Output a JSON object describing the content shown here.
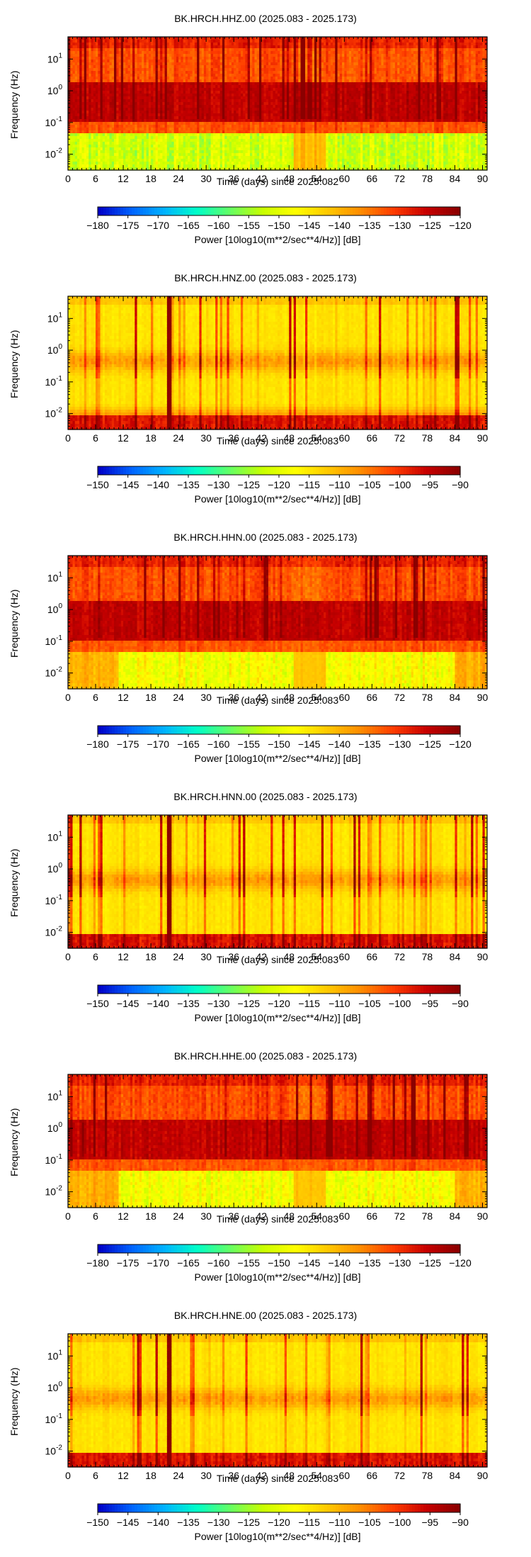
{
  "colors": {
    "colormap": [
      "#0000c8",
      "#0064ff",
      "#00b4ff",
      "#00ffc8",
      "#64ff64",
      "#c8ff00",
      "#ffff00",
      "#ffc800",
      "#ff8c00",
      "#ff3c00",
      "#c80000",
      "#8b0000"
    ]
  },
  "chart_data": [
    {
      "type": "heatmap",
      "title": "BK.HRCH.HHZ.00 (2025.083 - 2025.173)",
      "xlabel": "Time (days) since 2025.082",
      "ylabel": "Frequency (Hz)",
      "xlim": [
        0,
        91
      ],
      "x_ticks": [
        "0",
        "6",
        "12",
        "18",
        "24",
        "30",
        "36",
        "42",
        "48",
        "54",
        "60",
        "66",
        "72",
        "78",
        "84",
        "90"
      ],
      "ylim_log10": [
        -2.5,
        1.7
      ],
      "y_ticks": [
        {
          "base": "10",
          "exp": "-2"
        },
        {
          "base": "10",
          "exp": "-1"
        },
        {
          "base": "10",
          "exp": "0"
        },
        {
          "base": "10",
          "exp": "1"
        }
      ],
      "colorbar": {
        "label": "Power [10log10(m**2/sec**4/Hz)] [dB]",
        "range": [
          -180,
          -120
        ],
        "ticks": [
          "−180",
          "−175",
          "−170",
          "−165",
          "−160",
          "−155",
          "−150",
          "−145",
          "−140",
          "−135",
          "−130",
          "−125",
          "−120"
        ]
      },
      "pattern": "broadband-high"
    },
    {
      "type": "heatmap",
      "title": "BK.HRCH.HNZ.00 (2025.083 - 2025.173)",
      "xlabel": "Time (days) since 2025.083",
      "ylabel": "Frequency (Hz)",
      "xlim": [
        0,
        91
      ],
      "x_ticks": [
        "0",
        "6",
        "12",
        "18",
        "24",
        "30",
        "36",
        "42",
        "48",
        "54",
        "60",
        "66",
        "72",
        "78",
        "84",
        "90"
      ],
      "ylim_log10": [
        -2.5,
        1.7
      ],
      "y_ticks": [
        {
          "base": "10",
          "exp": "-2"
        },
        {
          "base": "10",
          "exp": "-1"
        },
        {
          "base": "10",
          "exp": "0"
        },
        {
          "base": "10",
          "exp": "1"
        }
      ],
      "colorbar": {
        "label": "Power [10log10(m**2/sec**4/Hz)] [dB]",
        "range": [
          -150,
          -90
        ],
        "ticks": [
          "−150",
          "−145",
          "−140",
          "−135",
          "−130",
          "−125",
          "−120",
          "−115",
          "−110",
          "−105",
          "−100",
          "−95",
          "−90"
        ]
      },
      "pattern": "strong-motion"
    },
    {
      "type": "heatmap",
      "title": "BK.HRCH.HHN.00 (2025.083 - 2025.173)",
      "xlabel": "Time (days) since 2025.083",
      "ylabel": "Frequency (Hz)",
      "xlim": [
        0,
        91
      ],
      "x_ticks": [
        "0",
        "6",
        "12",
        "18",
        "24",
        "30",
        "36",
        "42",
        "48",
        "54",
        "60",
        "66",
        "72",
        "78",
        "84",
        "90"
      ],
      "ylim_log10": [
        -2.5,
        1.7
      ],
      "y_ticks": [
        {
          "base": "10",
          "exp": "-2"
        },
        {
          "base": "10",
          "exp": "-1"
        },
        {
          "base": "10",
          "exp": "0"
        },
        {
          "base": "10",
          "exp": "1"
        }
      ],
      "colorbar": {
        "label": "Power [10log10(m**2/sec**4/Hz)] [dB]",
        "range": [
          -180,
          -120
        ],
        "ticks": [
          "−180",
          "−175",
          "−170",
          "−165",
          "−160",
          "−155",
          "−150",
          "−145",
          "−140",
          "−135",
          "−130",
          "−125",
          "−120"
        ]
      },
      "pattern": "broadband-horizontal"
    },
    {
      "type": "heatmap",
      "title": "BK.HRCH.HNN.00 (2025.083 - 2025.173)",
      "xlabel": "Time (days) since 2025.083",
      "ylabel": "Frequency (Hz)",
      "xlim": [
        0,
        91
      ],
      "x_ticks": [
        "0",
        "6",
        "12",
        "18",
        "24",
        "30",
        "36",
        "42",
        "48",
        "54",
        "60",
        "66",
        "72",
        "78",
        "84",
        "90"
      ],
      "ylim_log10": [
        -2.5,
        1.7
      ],
      "y_ticks": [
        {
          "base": "10",
          "exp": "-2"
        },
        {
          "base": "10",
          "exp": "-1"
        },
        {
          "base": "10",
          "exp": "0"
        },
        {
          "base": "10",
          "exp": "1"
        }
      ],
      "colorbar": {
        "label": "Power [10log10(m**2/sec**4/Hz)] [dB]",
        "range": [
          -150,
          -90
        ],
        "ticks": [
          "−150",
          "−145",
          "−140",
          "−135",
          "−130",
          "−125",
          "−120",
          "−115",
          "−110",
          "−105",
          "−100",
          "−95",
          "−90"
        ]
      },
      "pattern": "strong-motion-horizontal"
    },
    {
      "type": "heatmap",
      "title": "BK.HRCH.HHE.00 (2025.083 - 2025.173)",
      "xlabel": "Time (days) since 2025.083",
      "ylabel": "Frequency (Hz)",
      "xlim": [
        0,
        91
      ],
      "x_ticks": [
        "0",
        "6",
        "12",
        "18",
        "24",
        "30",
        "36",
        "42",
        "48",
        "54",
        "60",
        "66",
        "72",
        "78",
        "84",
        "90"
      ],
      "ylim_log10": [
        -2.5,
        1.7
      ],
      "y_ticks": [
        {
          "base": "10",
          "exp": "-2"
        },
        {
          "base": "10",
          "exp": "-1"
        },
        {
          "base": "10",
          "exp": "0"
        },
        {
          "base": "10",
          "exp": "1"
        }
      ],
      "colorbar": {
        "label": "Power [10log10(m**2/sec**4/Hz)] [dB]",
        "range": [
          -180,
          -120
        ],
        "ticks": [
          "−180",
          "−175",
          "−170",
          "−165",
          "−160",
          "−155",
          "−150",
          "−145",
          "−140",
          "−135",
          "−130",
          "−125",
          "−120"
        ]
      },
      "pattern": "broadband-horizontal"
    },
    {
      "type": "heatmap",
      "title": "BK.HRCH.HNE.00 (2025.083 - 2025.173)",
      "xlabel": "Time (days) since 2025.083",
      "ylabel": "Frequency (Hz)",
      "xlim": [
        0,
        91
      ],
      "x_ticks": [
        "0",
        "6",
        "12",
        "18",
        "24",
        "30",
        "36",
        "42",
        "48",
        "54",
        "60",
        "66",
        "72",
        "78",
        "84",
        "90"
      ],
      "ylim_log10": [
        -2.5,
        1.7
      ],
      "y_ticks": [
        {
          "base": "10",
          "exp": "-2"
        },
        {
          "base": "10",
          "exp": "-1"
        },
        {
          "base": "10",
          "exp": "0"
        },
        {
          "base": "10",
          "exp": "1"
        }
      ],
      "colorbar": {
        "label": "Power [10log10(m**2/sec**4/Hz)] [dB]",
        "range": [
          -150,
          -90
        ],
        "ticks": [
          "−150",
          "−145",
          "−140",
          "−135",
          "−130",
          "−125",
          "−120",
          "−115",
          "−110",
          "−105",
          "−100",
          "−95",
          "−90"
        ]
      },
      "pattern": "strong-motion-horizontal"
    }
  ]
}
